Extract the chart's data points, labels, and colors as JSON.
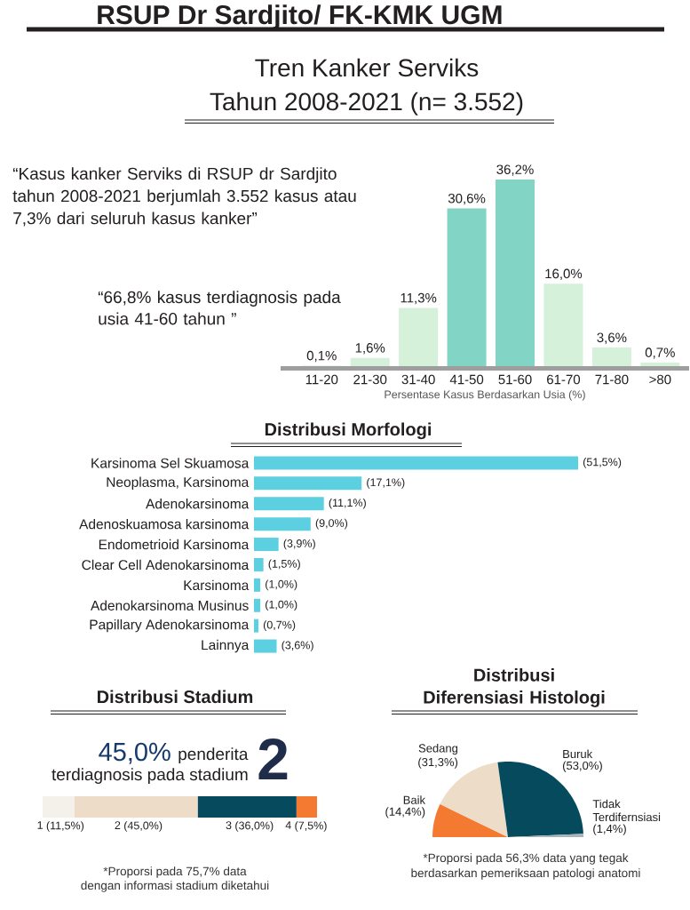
{
  "chart_data": [
    {
      "type": "bar",
      "title": "Tren Kanker Serviks",
      "subtitle": "Tahun 2008-2021 (n= 3.552)",
      "categories": [
        "11-20",
        "21-30",
        "31-40",
        "41-50",
        "51-60",
        "61-70",
        "71-80",
        ">80"
      ],
      "values": [
        0.1,
        1.6,
        11.3,
        30.6,
        36.2,
        16.0,
        3.6,
        0.7
      ],
      "colors": [
        "#d5f1d9",
        "#d5f1d9",
        "#d5f1d9",
        "#82d4c4",
        "#82d4c4",
        "#d5f1d9",
        "#d5f1d9",
        "#d5f1d9"
      ],
      "value_labels": [
        "0,1%",
        "1,6%",
        "11,3%",
        "30,6%",
        "36,2%",
        "16,0%",
        "3,6%",
        "0,7%"
      ],
      "xlabel": "Persentase Kasus Berdasarkan Usia (%)",
      "annotations": [
        "RSUP Dr Sardjito/ FK-KMK UGM",
        "“Kasus kanker Serviks di RSUP dr Sardjito tahun 2008-2021 berjumlah 3.552 kasus atau 7,3% dari seluruh kasus kanker”",
        "“66,8% kasus terdiagnosis pada usia 41-60 tahun ”"
      ]
    },
    {
      "type": "bar",
      "orientation": "horizontal",
      "title": "Distribusi Morfologi",
      "categories": [
        "Karsinoma Sel Skuamosa",
        "Neoplasma, Karsinoma",
        "Adenokarsinoma",
        "Adenoskuamosa karsinoma",
        "Endometrioid Karsinoma",
        "Clear Cell Adenokarsinoma",
        "Karsinoma",
        "Adenokarsinoma Musinus",
        "Papillary Adenokarsinoma",
        "Lainnya"
      ],
      "values": [
        51.5,
        17.1,
        11.1,
        9.0,
        3.9,
        1.5,
        1.0,
        1.0,
        0.7,
        3.6
      ],
      "color": "#5ccfe0",
      "value_labels": [
        "(51,5%)",
        "(17,1%)",
        "(11,1%)",
        "(9,0%)",
        "(3,9%)",
        "(1,5%)",
        "(1,0%)",
        "(1,0%)",
        "(0,7%)",
        "(3,6%)"
      ]
    },
    {
      "type": "bar",
      "orientation": "horizontal",
      "stacked": true,
      "title": "Distribusi Stadium",
      "categories": [
        null
      ],
      "series": [
        {
          "name": "1",
          "color": "#f4f1ea",
          "values": [
            11.5
          ],
          "value_labels": [
            "(11,5%)"
          ]
        },
        {
          "name": "2",
          "color": "#ecdcc8",
          "values": [
            45.0
          ],
          "value_labels": [
            "(45,0%)"
          ]
        },
        {
          "name": "3",
          "color": "#064a5e",
          "values": [
            36.0
          ],
          "value_labels": [
            "(36,0%)"
          ]
        },
        {
          "name": "4",
          "color": "#f47a32",
          "values": [
            7.5
          ],
          "value_labels": [
            "(7,5%)"
          ]
        }
      ],
      "annotations": [
        "45,0%",
        "penderita",
        "terdiagnosis pada stadium",
        "2",
        "*Proporsi pada 75,7% data",
        "dengan informasi stadium diketahui"
      ]
    },
    {
      "type": "pie",
      "title": "Distribusi Diferensiasi Histologi",
      "categories": [
        "Baik",
        "Sedang",
        "Buruk",
        "Tidak Terdifernsiasi"
      ],
      "values": [
        14.4,
        31.3,
        53.0,
        1.4
      ],
      "colors": [
        "#f47a32",
        "#ecdcc8",
        "#064a5e",
        "#a9b4b8"
      ],
      "value_labels": [
        "(14,4%)",
        "(31,3%)",
        "(53,0%)",
        "(1,4%)"
      ],
      "annotations": [
        "*Proporsi pada 56,3% data yang tegak",
        "berdasarkan pemeriksaan patologi anatomi"
      ]
    }
  ]
}
